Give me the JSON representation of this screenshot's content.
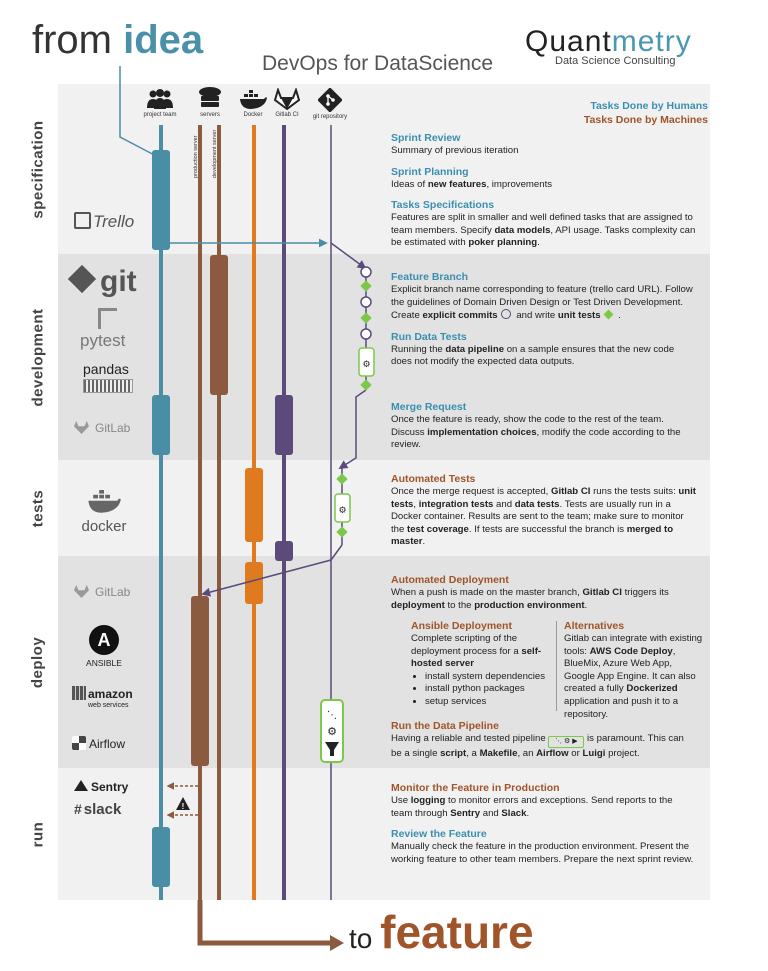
{
  "header": {
    "from_text": "from ",
    "idea_text": "idea",
    "subtitle": "DevOps for DataScience",
    "logo_main_a": "Quant",
    "logo_main_b": "metry",
    "logo_sub": "Data Science Consulting",
    "legend_humans": "Tasks Done by Humans",
    "legend_machines": "Tasks Done by Machines"
  },
  "footer": {
    "to_text": "to ",
    "feature_text": "feature"
  },
  "phases": [
    "specification",
    "development",
    "tests",
    "deploy",
    "run"
  ],
  "columns": [
    {
      "label": "project team",
      "icon": "team-icon"
    },
    {
      "label": "servers",
      "icon": "server-icon"
    },
    {
      "label": "Docker",
      "icon": "docker-icon"
    },
    {
      "label": "Gitlab CI",
      "icon": "gitlab-icon"
    },
    {
      "label": "git repository",
      "icon": "git-icon"
    }
  ],
  "server_labels": {
    "production": "production server",
    "development": "development server"
  },
  "tools": {
    "trello": "Trello",
    "git": "git",
    "pytest": "pytest",
    "pandas": "pandas",
    "gitlab": "GitLab",
    "docker": "docker",
    "gitlab2": "GitLab",
    "ansible": "ANSIBLE",
    "amazon": "amazon",
    "aws_sub": "web services",
    "airflow": "Airflow",
    "sentry": "Sentry",
    "slack": "slack"
  },
  "sections": {
    "sprint_review": {
      "title": "Sprint Review",
      "body": "Summary of previous iteration"
    },
    "sprint_planning": {
      "title": "Sprint Planning",
      "pre": "Ideas of ",
      "bold": "new features",
      "post": ", improvements"
    },
    "tasks_spec": {
      "title": "Tasks Specifications",
      "p1": "Features are split in smaller and well defined tasks that are assigned to team members. Specify ",
      "b1": "data models",
      "p2": ", API usage. Tasks complexity can be estimated with ",
      "b2": "poker planning",
      "p3": "."
    },
    "feature_branch": {
      "title": "Feature Branch",
      "p1": "Explicit branch name corresponding to feature (trello card URL). Follow the guidelines of Domain Driven Design or Test Driven Development. Create ",
      "b1": "explicit commits",
      "p2": " and  write ",
      "b2": "unit tests",
      "p3": " ."
    },
    "run_tests": {
      "title": "Run Data Tests",
      "p1": "Running the ",
      "b1": "data pipeline",
      "p2": " on a sample ensures that the new code does not modify the expected data outputs."
    },
    "merge_request": {
      "title": "Merge Request",
      "p1": "Once the feature is ready, show the code to the rest of the team. Discuss ",
      "b1": "implementation choices",
      "p2": ", modify the code according to the review."
    },
    "auto_tests": {
      "title": "Automated Tests",
      "p1": "Once the merge request is accepted, ",
      "b1": "Gitlab CI",
      "p2": " runs the tests suits: ",
      "b2": "unit tests",
      "p3": ", ",
      "b3": "integration tests",
      "p4": " and ",
      "b4": "data tests",
      "p5": ". Tests are usually run in a Docker container. Results are sent to the team; make sure to monitor the ",
      "b5": "test coverage",
      "p6": ". If tests are successful the branch is ",
      "b6": "merged to master",
      "p7": "."
    },
    "auto_deploy": {
      "title": "Automated Deployment",
      "p1": "When a push is made on the master branch, ",
      "b1": "Gitlab CI",
      "p2": " triggers its ",
      "b2": "deployment",
      "p3": " to the ",
      "b3": "production environment",
      "p4": "."
    },
    "ansible": {
      "title": "Ansible Deployment",
      "p1": "Complete scripting of the deployment process for a ",
      "b1": "self-hosted server",
      "items": [
        "install system dependencies",
        "install python packages",
        "setup services"
      ]
    },
    "alternatives": {
      "title": "Alternatives",
      "p1": "Gitlab can integrate with existing tools: ",
      "b1": "AWS Code Deploy",
      "p2": ", BlueMix, Azure Web App, Google App Engine. It can also created a fully ",
      "b2": "Dockerized",
      "p3": " application and push it to a repository."
    },
    "run_pipeline": {
      "title": "Run the Data Pipeline",
      "p1": "Having a reliable and tested pipeline ",
      "p2": " is paramount. This can be a single ",
      "b1": "script",
      "p3": ", a ",
      "b2": "Makefile",
      "p4": ", an ",
      "b3": "Airflow",
      "p5": " or ",
      "b4": "Luigi",
      "p6": " project."
    },
    "monitor": {
      "title": "Monitor the Feature in Production",
      "p1": "Use ",
      "b1": "logging",
      "p2": " to monitor errors and exceptions. Send reports to the team through ",
      "b2": "Sentry",
      "p3": " and ",
      "b3": "Slack",
      "p4": "."
    },
    "review": {
      "title": "Review the Feature",
      "body": "Manually check the feature in the production environment. Present the working feature to other team members. Prepare the next sprint review."
    }
  },
  "colors": {
    "teal": "#4a8ea6",
    "brown": "#8b5a3f",
    "orange": "#e07a1e",
    "purple": "#5b4a7a",
    "green": "#7cc84a"
  }
}
